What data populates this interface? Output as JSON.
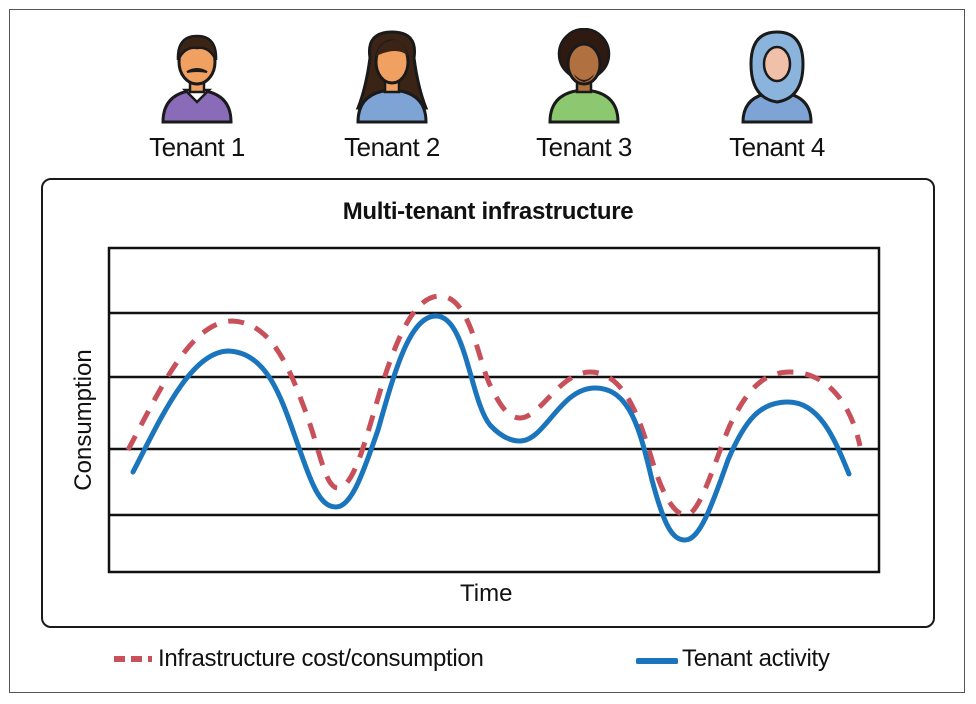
{
  "tenants": [
    {
      "label": "Tenant 1",
      "icon": "man-mustache-avatar-icon",
      "shirt": "#8a6bb8",
      "hair": "#3b2416",
      "skin": "#f0a060"
    },
    {
      "label": "Tenant 2",
      "icon": "woman-long-hair-avatar-icon",
      "shirt": "#7ea4d6",
      "hair": "#3b2416",
      "skin": "#f0a060"
    },
    {
      "label": "Tenant 3",
      "icon": "man-curly-hair-avatar-icon",
      "shirt": "#8cc870",
      "hair": "#2e1a10",
      "skin": "#b07040"
    },
    {
      "label": "Tenant 4",
      "icon": "woman-hijab-avatar-icon",
      "shirt": "#7ea4d6",
      "hair": "#8ab4dc",
      "skin": "#f0c0a8"
    }
  ],
  "diagram": {
    "title": "Multi-tenant infrastructure",
    "x_label": "Time",
    "y_label": "Consumption"
  },
  "legend": {
    "cost_label": "Infrastructure cost/consumption",
    "activity_label": "Tenant activity"
  },
  "colors": {
    "cost": "#c8505a",
    "activity": "#1b75bc",
    "grid": "#111111"
  }
}
